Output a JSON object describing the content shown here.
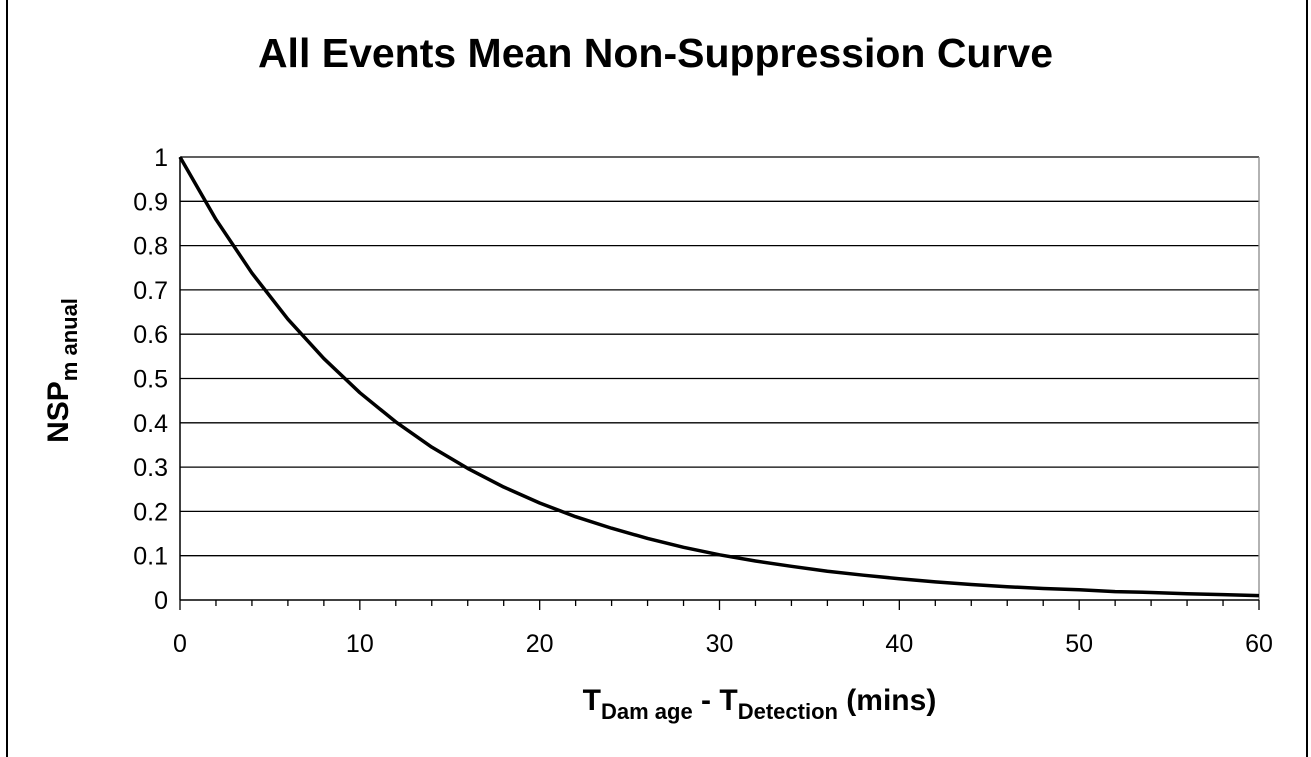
{
  "chart_data": {
    "type": "line",
    "title": "All Events Mean Non-Suppression Curve",
    "xlabel": {
      "parts": [
        {
          "text": "T",
          "sub": false
        },
        {
          "text": "Dam age",
          "sub": true
        },
        {
          "text": " - T",
          "sub": false
        },
        {
          "text": "Detection",
          "sub": true
        },
        {
          "text": " (mins)",
          "sub": false
        }
      ]
    },
    "ylabel": {
      "parts": [
        {
          "text": "NSP",
          "sub": false
        },
        {
          "text": "m anual",
          "sub": true
        }
      ]
    },
    "xlim": [
      0,
      60
    ],
    "ylim": [
      0,
      1
    ],
    "xticks": [
      "0",
      "10",
      "20",
      "30",
      "40",
      "50",
      "60"
    ],
    "yticks": [
      "0",
      "0.1",
      "0.2",
      "0.3",
      "0.4",
      "0.5",
      "0.6",
      "0.7",
      "0.8",
      "0.9",
      "1"
    ],
    "grid": true,
    "series": [
      {
        "x": [
          0,
          2,
          4,
          6,
          8,
          10,
          12,
          14,
          16,
          18,
          20,
          22,
          24,
          26,
          28,
          30,
          32,
          34,
          36,
          38,
          40,
          42,
          44,
          46,
          48,
          50,
          52,
          54,
          56,
          58,
          60
        ],
        "y": [
          1.0,
          0.859,
          0.738,
          0.634,
          0.545,
          0.468,
          0.402,
          0.345,
          0.297,
          0.255,
          0.219,
          0.188,
          0.162,
          0.139,
          0.119,
          0.102,
          0.088,
          0.076,
          0.065,
          0.056,
          0.048,
          0.041,
          0.035,
          0.03,
          0.026,
          0.023,
          0.019,
          0.017,
          0.014,
          0.012,
          0.01
        ]
      }
    ]
  }
}
